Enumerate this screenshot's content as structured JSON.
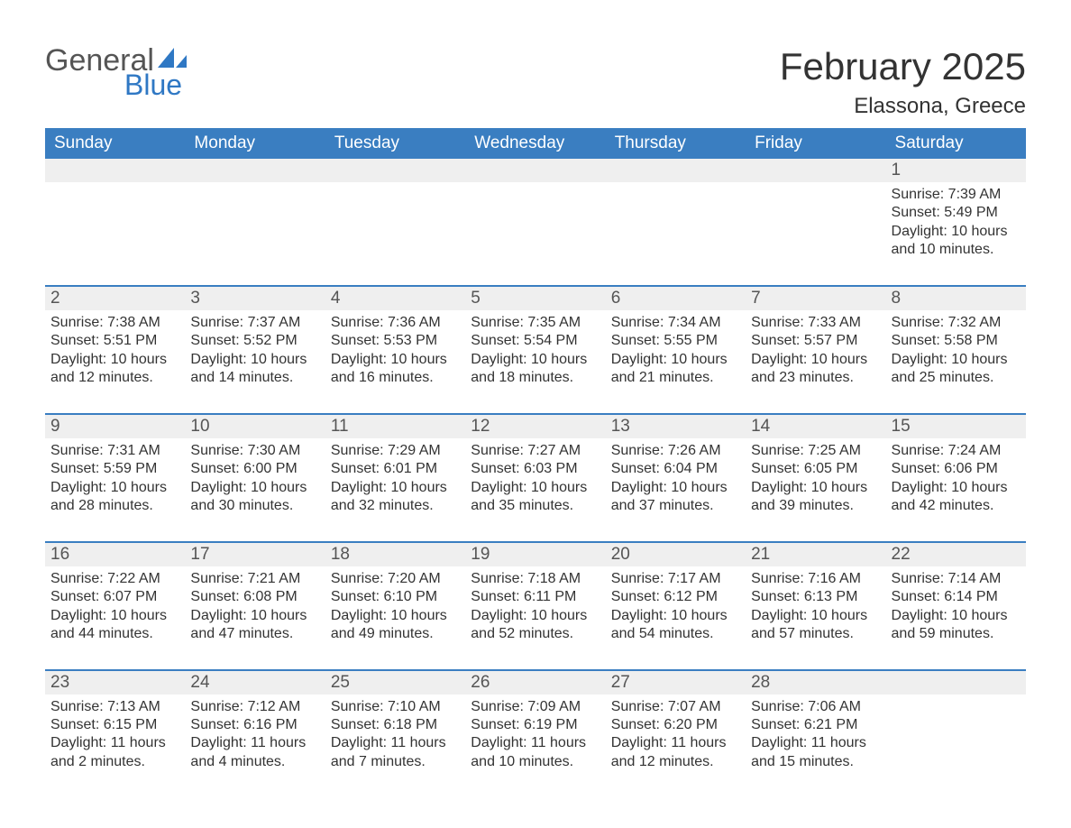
{
  "logo": {
    "text_general": "General",
    "text_blue": "Blue",
    "shape_color": "#2f78c4",
    "general_color": "#555555"
  },
  "title": "February 2025",
  "location": "Elassona, Greece",
  "colors": {
    "header_bg": "#3a7ec1",
    "header_text": "#ffffff",
    "week_border": "#3a7ec1",
    "daynum_bg": "#efefef",
    "body_bg": "#ffffff",
    "text": "#333333",
    "daynum_text": "#555555"
  },
  "fonts": {
    "title_size_pt": 32,
    "location_size_pt": 18,
    "dayhead_size_pt": 14,
    "daynum_size_pt": 14,
    "body_size_pt": 12
  },
  "day_headers": [
    "Sunday",
    "Monday",
    "Tuesday",
    "Wednesday",
    "Thursday",
    "Friday",
    "Saturday"
  ],
  "weeks": [
    [
      {
        "num": "",
        "sunrise": "",
        "sunset": "",
        "daylight": ""
      },
      {
        "num": "",
        "sunrise": "",
        "sunset": "",
        "daylight": ""
      },
      {
        "num": "",
        "sunrise": "",
        "sunset": "",
        "daylight": ""
      },
      {
        "num": "",
        "sunrise": "",
        "sunset": "",
        "daylight": ""
      },
      {
        "num": "",
        "sunrise": "",
        "sunset": "",
        "daylight": ""
      },
      {
        "num": "",
        "sunrise": "",
        "sunset": "",
        "daylight": ""
      },
      {
        "num": "1",
        "sunrise": "Sunrise: 7:39 AM",
        "sunset": "Sunset: 5:49 PM",
        "daylight": "Daylight: 10 hours and 10 minutes."
      }
    ],
    [
      {
        "num": "2",
        "sunrise": "Sunrise: 7:38 AM",
        "sunset": "Sunset: 5:51 PM",
        "daylight": "Daylight: 10 hours and 12 minutes."
      },
      {
        "num": "3",
        "sunrise": "Sunrise: 7:37 AM",
        "sunset": "Sunset: 5:52 PM",
        "daylight": "Daylight: 10 hours and 14 minutes."
      },
      {
        "num": "4",
        "sunrise": "Sunrise: 7:36 AM",
        "sunset": "Sunset: 5:53 PM",
        "daylight": "Daylight: 10 hours and 16 minutes."
      },
      {
        "num": "5",
        "sunrise": "Sunrise: 7:35 AM",
        "sunset": "Sunset: 5:54 PM",
        "daylight": "Daylight: 10 hours and 18 minutes."
      },
      {
        "num": "6",
        "sunrise": "Sunrise: 7:34 AM",
        "sunset": "Sunset: 5:55 PM",
        "daylight": "Daylight: 10 hours and 21 minutes."
      },
      {
        "num": "7",
        "sunrise": "Sunrise: 7:33 AM",
        "sunset": "Sunset: 5:57 PM",
        "daylight": "Daylight: 10 hours and 23 minutes."
      },
      {
        "num": "8",
        "sunrise": "Sunrise: 7:32 AM",
        "sunset": "Sunset: 5:58 PM",
        "daylight": "Daylight: 10 hours and 25 minutes."
      }
    ],
    [
      {
        "num": "9",
        "sunrise": "Sunrise: 7:31 AM",
        "sunset": "Sunset: 5:59 PM",
        "daylight": "Daylight: 10 hours and 28 minutes."
      },
      {
        "num": "10",
        "sunrise": "Sunrise: 7:30 AM",
        "sunset": "Sunset: 6:00 PM",
        "daylight": "Daylight: 10 hours and 30 minutes."
      },
      {
        "num": "11",
        "sunrise": "Sunrise: 7:29 AM",
        "sunset": "Sunset: 6:01 PM",
        "daylight": "Daylight: 10 hours and 32 minutes."
      },
      {
        "num": "12",
        "sunrise": "Sunrise: 7:27 AM",
        "sunset": "Sunset: 6:03 PM",
        "daylight": "Daylight: 10 hours and 35 minutes."
      },
      {
        "num": "13",
        "sunrise": "Sunrise: 7:26 AM",
        "sunset": "Sunset: 6:04 PM",
        "daylight": "Daylight: 10 hours and 37 minutes."
      },
      {
        "num": "14",
        "sunrise": "Sunrise: 7:25 AM",
        "sunset": "Sunset: 6:05 PM",
        "daylight": "Daylight: 10 hours and 39 minutes."
      },
      {
        "num": "15",
        "sunrise": "Sunrise: 7:24 AM",
        "sunset": "Sunset: 6:06 PM",
        "daylight": "Daylight: 10 hours and 42 minutes."
      }
    ],
    [
      {
        "num": "16",
        "sunrise": "Sunrise: 7:22 AM",
        "sunset": "Sunset: 6:07 PM",
        "daylight": "Daylight: 10 hours and 44 minutes."
      },
      {
        "num": "17",
        "sunrise": "Sunrise: 7:21 AM",
        "sunset": "Sunset: 6:08 PM",
        "daylight": "Daylight: 10 hours and 47 minutes."
      },
      {
        "num": "18",
        "sunrise": "Sunrise: 7:20 AM",
        "sunset": "Sunset: 6:10 PM",
        "daylight": "Daylight: 10 hours and 49 minutes."
      },
      {
        "num": "19",
        "sunrise": "Sunrise: 7:18 AM",
        "sunset": "Sunset: 6:11 PM",
        "daylight": "Daylight: 10 hours and 52 minutes."
      },
      {
        "num": "20",
        "sunrise": "Sunrise: 7:17 AM",
        "sunset": "Sunset: 6:12 PM",
        "daylight": "Daylight: 10 hours and 54 minutes."
      },
      {
        "num": "21",
        "sunrise": "Sunrise: 7:16 AM",
        "sunset": "Sunset: 6:13 PM",
        "daylight": "Daylight: 10 hours and 57 minutes."
      },
      {
        "num": "22",
        "sunrise": "Sunrise: 7:14 AM",
        "sunset": "Sunset: 6:14 PM",
        "daylight": "Daylight: 10 hours and 59 minutes."
      }
    ],
    [
      {
        "num": "23",
        "sunrise": "Sunrise: 7:13 AM",
        "sunset": "Sunset: 6:15 PM",
        "daylight": "Daylight: 11 hours and 2 minutes."
      },
      {
        "num": "24",
        "sunrise": "Sunrise: 7:12 AM",
        "sunset": "Sunset: 6:16 PM",
        "daylight": "Daylight: 11 hours and 4 minutes."
      },
      {
        "num": "25",
        "sunrise": "Sunrise: 7:10 AM",
        "sunset": "Sunset: 6:18 PM",
        "daylight": "Daylight: 11 hours and 7 minutes."
      },
      {
        "num": "26",
        "sunrise": "Sunrise: 7:09 AM",
        "sunset": "Sunset: 6:19 PM",
        "daylight": "Daylight: 11 hours and 10 minutes."
      },
      {
        "num": "27",
        "sunrise": "Sunrise: 7:07 AM",
        "sunset": "Sunset: 6:20 PM",
        "daylight": "Daylight: 11 hours and 12 minutes."
      },
      {
        "num": "28",
        "sunrise": "Sunrise: 7:06 AM",
        "sunset": "Sunset: 6:21 PM",
        "daylight": "Daylight: 11 hours and 15 minutes."
      },
      {
        "num": "",
        "sunrise": "",
        "sunset": "",
        "daylight": ""
      }
    ]
  ]
}
